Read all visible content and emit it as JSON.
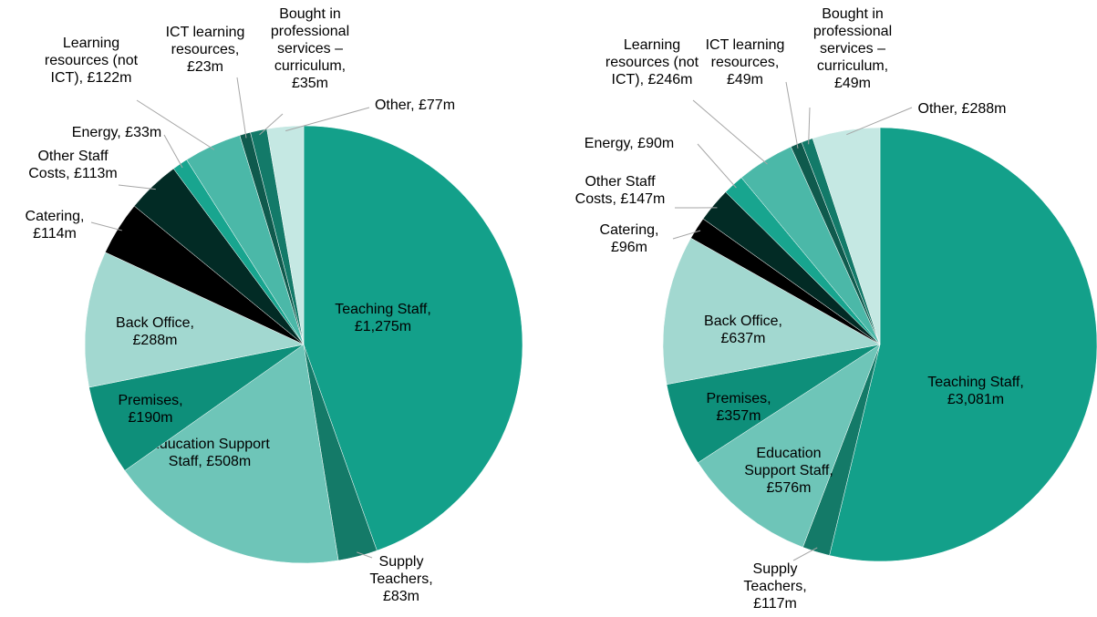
{
  "chart_data": [
    {
      "type": "pie",
      "values": [
        1275,
        83,
        508,
        190,
        288,
        114,
        113,
        33,
        122,
        23,
        35,
        77
      ],
      "value_labels": [
        "Teaching Staff, £1,275m",
        "Supply Teachers, £83m",
        "Education Support Staff, £508m",
        "Premises, £190m",
        "Back Office, £288m",
        "Catering, £114m",
        "Other Staff Costs, £113m",
        "Energy, £33m",
        "Learning resources (not ICT), £122m",
        "ICT learning resources, £23m",
        "Bought in professional services – curriculum, £35m",
        "Other, £77m"
      ],
      "colors": [
        "#13a08a",
        "#147a68",
        "#6ec5b8",
        "#0e8f7a",
        "#a2d8d0",
        "#000000",
        "#022b25",
        "#18a58f",
        "#4bb8a8",
        "#0f5a4d",
        "#137a69",
        "#c5e8e3"
      ]
    },
    {
      "type": "pie",
      "values": [
        3081,
        117,
        576,
        357,
        637,
        96,
        147,
        90,
        246,
        49,
        49,
        288
      ],
      "value_labels": [
        "Teaching Staff, £3,081m",
        "Supply Teachers, £117m",
        "Education Support Staff, £576m",
        "Premises, £357m",
        "Back Office, £637m",
        "Catering, £96m",
        "Other Staff Costs, £147m",
        "Energy, £90m",
        "Learning resources (not ICT), £246m",
        "ICT learning resources, £49m",
        "Bought in professional services – curriculum, £49m",
        "Other, £288m"
      ],
      "colors": [
        "#13a08a",
        "#147a68",
        "#6ec5b8",
        "#0e8f7a",
        "#a2d8d0",
        "#000000",
        "#022b25",
        "#18a58f",
        "#4bb8a8",
        "#0f5a4d",
        "#137a69",
        "#c5e8e3"
      ]
    }
  ]
}
